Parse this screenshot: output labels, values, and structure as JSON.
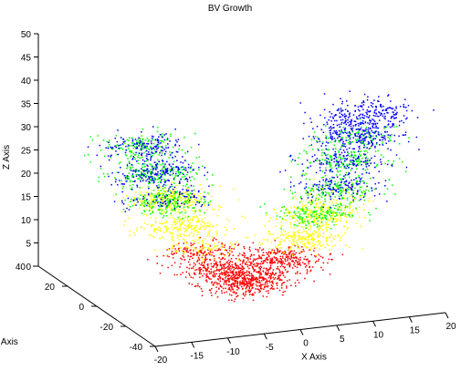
{
  "chart_data": {
    "type": "scatter",
    "title": "BV Growth",
    "xlabel": "X Axis",
    "ylabel": "Y Axis",
    "zlabel": "Z Axis",
    "xlim": [
      -20,
      20
    ],
    "ylim": [
      -40,
      40
    ],
    "zlim": [
      0,
      50
    ],
    "x_ticks": [
      -20,
      -15,
      -10,
      -5,
      0,
      5,
      10,
      15,
      20
    ],
    "y_ticks": [
      -40,
      -20,
      0,
      20,
      40
    ],
    "z_ticks": [
      0,
      5,
      10,
      15,
      20,
      25,
      30,
      35,
      40,
      45,
      50
    ],
    "grid": false,
    "legend": "none",
    "projection": "3d",
    "colors": {
      "red": "#ff0000",
      "yellow": "#ffff00",
      "green": "#00ff00",
      "blue": "#0000ff",
      "axis": "#000000"
    },
    "series_order": [
      "red",
      "yellow",
      "green",
      "blue"
    ],
    "bands": [
      {
        "series": "red",
        "color": "#ff0000",
        "z_range": [
          2,
          10
        ]
      },
      {
        "series": "yellow",
        "color": "#ffff00",
        "z_range": [
          10,
          22
        ]
      },
      {
        "series": "green",
        "color": "#00ff00",
        "z_range": [
          16,
          34
        ]
      },
      {
        "series": "blue",
        "color": "#0000ff",
        "z_range": [
          20,
          40
        ]
      }
    ],
    "spine": [
      {
        "x": -12.0,
        "y": 10.0,
        "z": 30.0
      },
      {
        "x": -11.0,
        "y": 7.0,
        "z": 25.0
      },
      {
        "x": -9.5,
        "y": 4.0,
        "z": 20.0
      },
      {
        "x": -8.0,
        "y": 1.0,
        "z": 15.0
      },
      {
        "x": -6.0,
        "y": -2.0,
        "z": 10.0
      },
      {
        "x": -3.5,
        "y": -5.0,
        "z": 6.0
      },
      {
        "x": -1.0,
        "y": -7.0,
        "z": 4.0
      },
      {
        "x": 1.5,
        "y": -8.0,
        "z": 5.0
      },
      {
        "x": 4.0,
        "y": -9.0,
        "z": 8.0
      },
      {
        "x": 6.5,
        "y": -10.0,
        "z": 12.0
      },
      {
        "x": 8.5,
        "y": -11.0,
        "z": 17.0
      },
      {
        "x": 10.5,
        "y": -12.0,
        "z": 23.0
      },
      {
        "x": 12.0,
        "y": -12.5,
        "z": 29.0
      },
      {
        "x": 13.5,
        "y": -13.0,
        "z": 34.0
      },
      {
        "x": 15.0,
        "y": -13.5,
        "z": 39.0
      }
    ],
    "point_spread": {
      "x": 2.6,
      "y": 5.0
    },
    "points_per_series": 1200,
    "marker_size": 1.5
  }
}
